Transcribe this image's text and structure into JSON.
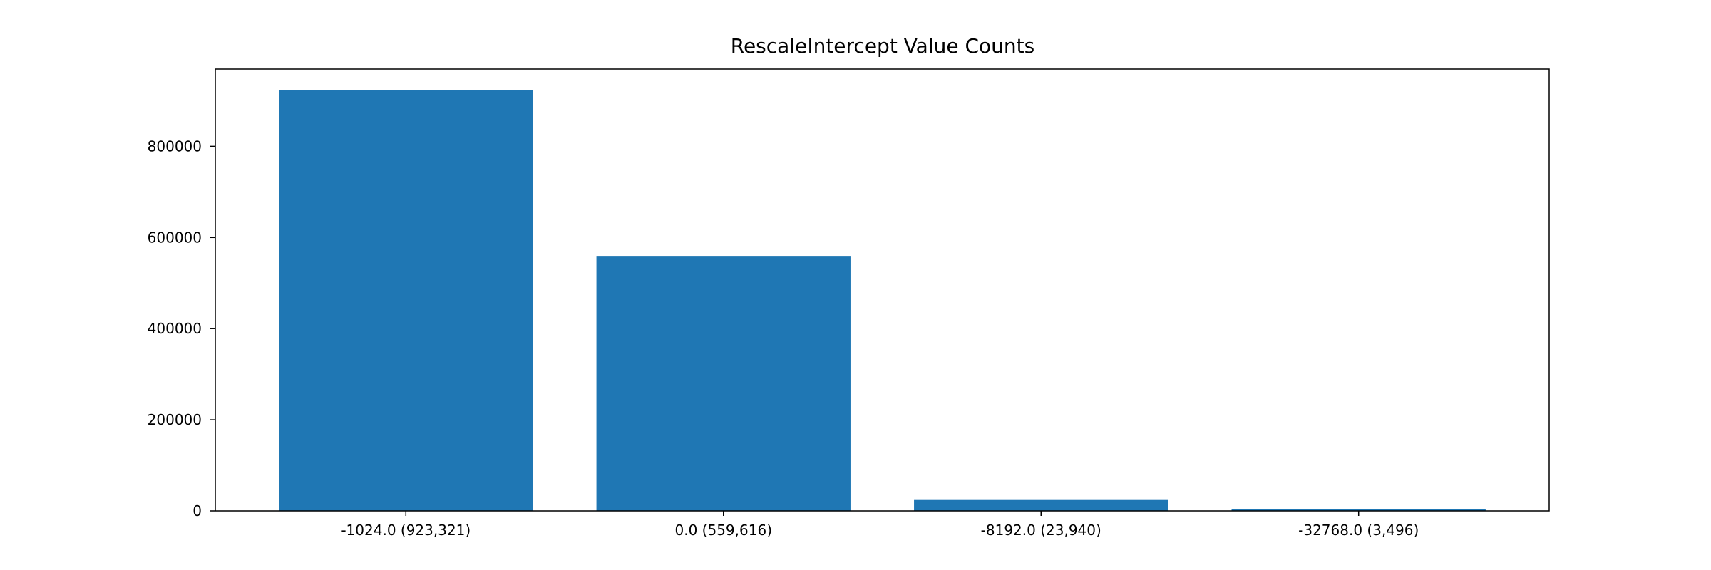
{
  "chart_data": {
    "type": "bar",
    "title": "RescaleIntercept Value Counts",
    "xlabel": "",
    "ylabel": "",
    "categories": [
      "-1024.0 (923,321)",
      "0.0 (559,616)",
      "-8192.0 (23,940)",
      "-32768.0 (3,496)"
    ],
    "values": [
      923321,
      559616,
      23940,
      3496
    ],
    "yticks": [
      0,
      200000,
      400000,
      600000,
      800000
    ],
    "ylim": [
      0,
      969487
    ],
    "grid": false,
    "legend": "none",
    "colors": {
      "bar": "#1f77b4",
      "axes": "#000000",
      "background": "#ffffff"
    }
  }
}
